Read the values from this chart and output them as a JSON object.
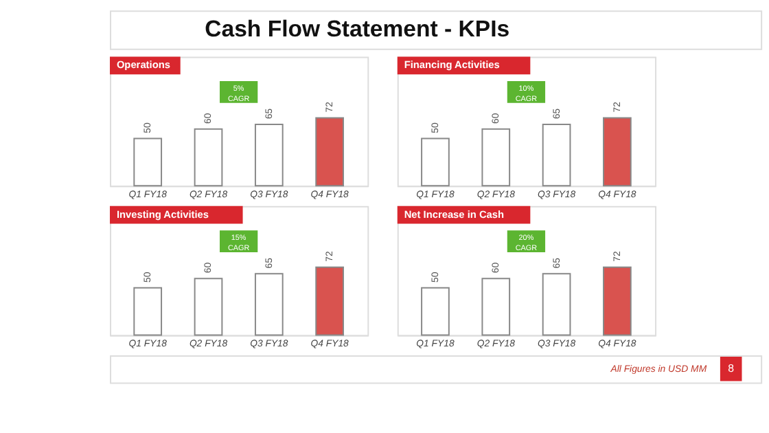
{
  "chart_data": [
    {
      "type": "other",
      "title": "Cash Flow Statement - KPIs",
      "annotations": [
        "All Figures in USD MM",
        "8"
      ]
    },
    {
      "type": "bar",
      "title": "Operations",
      "categories": [
        "Q1 FY18",
        "Q2 FY18",
        "Q3 FY18",
        "Q4 FY18"
      ],
      "values": [
        50,
        60,
        65,
        72
      ],
      "colors": [
        "#ffffff",
        "#ffffff",
        "#ffffff",
        "#d9534f"
      ],
      "data_labels": true,
      "annotations": [
        "5% CAGR"
      ]
    },
    {
      "type": "bar",
      "title": "Financing Activities",
      "categories": [
        "Q1 FY18",
        "Q2 FY18",
        "Q3 FY18",
        "Q4 FY18"
      ],
      "values": [
        50,
        60,
        65,
        72
      ],
      "colors": [
        "#ffffff",
        "#ffffff",
        "#ffffff",
        "#d9534f"
      ],
      "data_labels": true,
      "annotations": [
        "10% CAGR"
      ]
    },
    {
      "type": "bar",
      "title": "Investing Activities",
      "categories": [
        "Q1 FY18",
        "Q2 FY18",
        "Q3 FY18",
        "Q4 FY18"
      ],
      "values": [
        50,
        60,
        65,
        72
      ],
      "colors": [
        "#ffffff",
        "#ffffff",
        "#ffffff",
        "#d9534f"
      ],
      "data_labels": true,
      "annotations": [
        "15% CAGR"
      ]
    },
    {
      "type": "bar",
      "title": "Net Increase in Cash",
      "categories": [
        "Q1 FY18",
        "Q2 FY18",
        "Q3 FY18",
        "Q4 FY18"
      ],
      "values": [
        50,
        60,
        65,
        72
      ],
      "colors": [
        "#ffffff",
        "#ffffff",
        "#ffffff",
        "#d9534f"
      ],
      "data_labels": true,
      "annotations": [
        "20% CAGR"
      ]
    }
  ]
}
